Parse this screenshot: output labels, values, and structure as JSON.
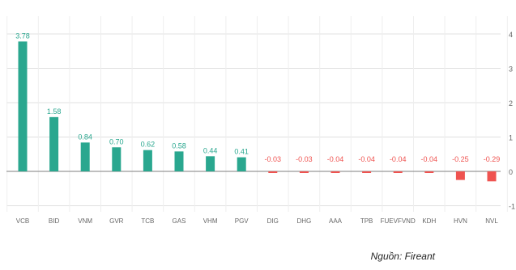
{
  "source_text": "Nguồn: Fireant",
  "colors": {
    "positive": "#2aa78f",
    "negative": "#ef5350",
    "grid": "#e0e0e0",
    "zero_line": "#999999",
    "tick_text": "#666666"
  },
  "chart_data": {
    "type": "bar",
    "categories": [
      "VCB",
      "BID",
      "VNM",
      "GVR",
      "TCB",
      "GAS",
      "VHM",
      "PGV",
      "DIG",
      "DHG",
      "AAA",
      "TPB",
      "FUEVFVND",
      "KDH",
      "HVN",
      "NVL"
    ],
    "values": [
      3.78,
      1.58,
      0.84,
      0.7,
      0.62,
      0.58,
      0.44,
      0.41,
      -0.03,
      -0.03,
      -0.04,
      -0.04,
      -0.04,
      -0.04,
      -0.25,
      -0.29
    ],
    "value_labels": [
      "3.78",
      "1.58",
      "0.84",
      "0.70",
      "0.62",
      "0.58",
      "0.44",
      "0.41",
      "-0.03",
      "-0.03",
      "-0.04",
      "-0.04",
      "-0.04",
      "-0.04",
      "-0.25",
      "-0.29"
    ],
    "yticks": [
      "4",
      "3",
      "2",
      "1",
      "0",
      "-1"
    ],
    "ylim": [
      -1,
      4
    ],
    "y_axis_side": "right",
    "grid": "vertical-and-horizontal-light"
  }
}
